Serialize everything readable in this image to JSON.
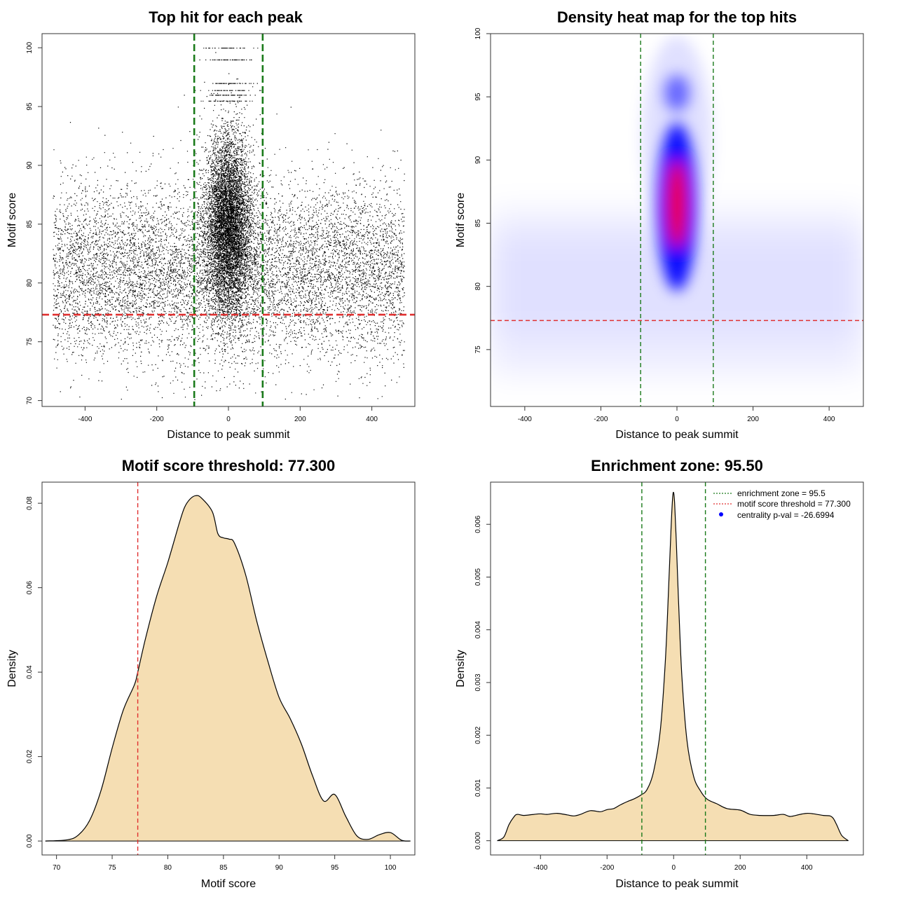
{
  "colors": {
    "green": "#1a7a1a",
    "red": "#e03030",
    "fill": "#f5deb3",
    "blue": "#0000ff",
    "heat_red": "#ff0000",
    "points": "#000000"
  },
  "chart_data": [
    {
      "id": "scatter",
      "type": "scatter",
      "title": "Top hit for each peak",
      "xlabel": "Distance to peak summit",
      "ylabel": "Motif score",
      "xlim": [
        -520,
        520
      ],
      "ylim": [
        69.5,
        101.2
      ],
      "xticks": [
        -400,
        -200,
        0,
        200,
        400
      ],
      "yticks": [
        70,
        75,
        80,
        85,
        90,
        95,
        100
      ],
      "xtick_labels": [
        "-400",
        "-200",
        "0",
        "200",
        "400"
      ],
      "ytick_labels": [
        "70",
        "75",
        "80",
        "85",
        "90",
        "95",
        "100"
      ],
      "vlines": [
        -95.5,
        95.5
      ],
      "hline": 77.3,
      "x_range": [
        -490,
        490
      ],
      "background_score_mean": 81,
      "central_score_mean": 85,
      "central_sd": 45
    },
    {
      "id": "heatmap",
      "type": "heatmap",
      "title": "Density heat map for the top hits",
      "xlabel": "Distance to peak summit",
      "ylabel": "Motif score",
      "xlim": [
        -490,
        490
      ],
      "ylim": [
        70.5,
        100
      ],
      "xticks": [
        -400,
        -200,
        0,
        200,
        400
      ],
      "yticks": [
        75,
        80,
        85,
        90,
        95,
        100
      ],
      "xtick_labels": [
        "-400",
        "-200",
        "0",
        "200",
        "400"
      ],
      "ytick_labels": [
        "75",
        "80",
        "85",
        "90",
        "95",
        "100"
      ],
      "vlines": [
        -95.5,
        95.5
      ],
      "hline": 77.3,
      "peak": {
        "x": 0,
        "y": 86.5
      }
    },
    {
      "id": "score-density",
      "type": "area",
      "title": "Motif score threshold: 77.300",
      "xlabel": "Motif score",
      "ylabel": "Density",
      "xlim": [
        68.7,
        102.2
      ],
      "ylim": [
        -0.0033,
        0.085
      ],
      "xticks": [
        70,
        75,
        80,
        85,
        90,
        95,
        100
      ],
      "yticks": [
        0,
        0.02,
        0.04,
        0.06,
        0.08
      ],
      "xtick_labels": [
        "70",
        "75",
        "80",
        "85",
        "90",
        "95",
        "100"
      ],
      "ytick_labels": [
        "0.00",
        "0.02",
        "0.04",
        "0.06",
        "0.08"
      ],
      "vline": 77.3,
      "x": [
        69,
        71,
        72,
        73,
        74,
        75,
        76,
        77,
        77.3,
        78,
        79,
        80,
        81,
        81.5,
        82,
        82.5,
        83,
        84,
        84.5,
        85,
        85.5,
        86,
        87,
        88,
        89,
        90,
        91,
        92,
        93,
        94,
        95,
        96,
        97,
        98,
        99,
        100,
        101,
        101.8
      ],
      "y": [
        0,
        0.0003,
        0.0015,
        0.005,
        0.012,
        0.022,
        0.031,
        0.037,
        0.04,
        0.048,
        0.058,
        0.066,
        0.075,
        0.079,
        0.081,
        0.0818,
        0.0813,
        0.078,
        0.0728,
        0.0718,
        0.0715,
        0.0705,
        0.063,
        0.052,
        0.0425,
        0.034,
        0.029,
        0.023,
        0.0155,
        0.0095,
        0.011,
        0.0058,
        0.0012,
        0.0004,
        0.0015,
        0.002,
        0.0002,
        0
      ]
    },
    {
      "id": "distance-density",
      "type": "area",
      "title": "Enrichment zone: 95.50",
      "xlabel": "Distance to peak summit",
      "ylabel": "Density",
      "xlim": [
        -550,
        570
      ],
      "ylim": [
        -0.00027,
        0.0068
      ],
      "xticks": [
        -400,
        -200,
        0,
        200,
        400
      ],
      "yticks": [
        0,
        0.001,
        0.002,
        0.003,
        0.004,
        0.005,
        0.006
      ],
      "xtick_labels": [
        "-400",
        "-200",
        "0",
        "200",
        "400"
      ],
      "ytick_labels": [
        "0.000",
        "0.001",
        "0.002",
        "0.003",
        "0.004",
        "0.005",
        "0.006"
      ],
      "vlines": [
        -95.5,
        95.5
      ],
      "x": [
        -530,
        -510,
        -495,
        -480,
        -470,
        -450,
        -420,
        -400,
        -380,
        -350,
        -320,
        -300,
        -280,
        -250,
        -220,
        -200,
        -180,
        -160,
        -140,
        -120,
        -100,
        -80,
        -60,
        -40,
        -25,
        -15,
        -8,
        -3,
        0,
        3,
        8,
        15,
        25,
        40,
        60,
        80,
        100,
        130,
        160,
        200,
        230,
        260,
        300,
        330,
        350,
        380,
        400,
        420,
        450,
        470,
        480,
        490,
        505,
        525
      ],
      "y": [
        0,
        7e-05,
        0.0003,
        0.00045,
        0.0005,
        0.00048,
        0.0005,
        0.00051,
        0.0005,
        0.00052,
        0.00049,
        0.00047,
        0.0005,
        0.00057,
        0.00055,
        0.00059,
        0.00061,
        0.00068,
        0.00074,
        0.00079,
        0.00086,
        0.00097,
        0.00132,
        0.0021,
        0.0034,
        0.0048,
        0.0059,
        0.0065,
        0.0066,
        0.0064,
        0.0057,
        0.0045,
        0.0031,
        0.0019,
        0.00122,
        0.00095,
        0.00079,
        0.0007,
        0.00061,
        0.00058,
        0.0005,
        0.00048,
        0.00048,
        0.0005,
        0.00046,
        0.0005,
        0.00052,
        0.00051,
        0.00048,
        0.00047,
        0.00042,
        0.0003,
        0.0001,
        0
      ],
      "legend": [
        {
          "label": "enrichment zone = 95.5",
          "marker": "dotted-line",
          "color": "#1a7a1a"
        },
        {
          "label": "motif score threshold = 77.300",
          "marker": "dotted-line",
          "color": "#e03030"
        },
        {
          "label": "centrality p-val = -26.6994",
          "marker": "dot",
          "color": "#0000ff"
        }
      ],
      "legend_position": "top-right"
    }
  ]
}
